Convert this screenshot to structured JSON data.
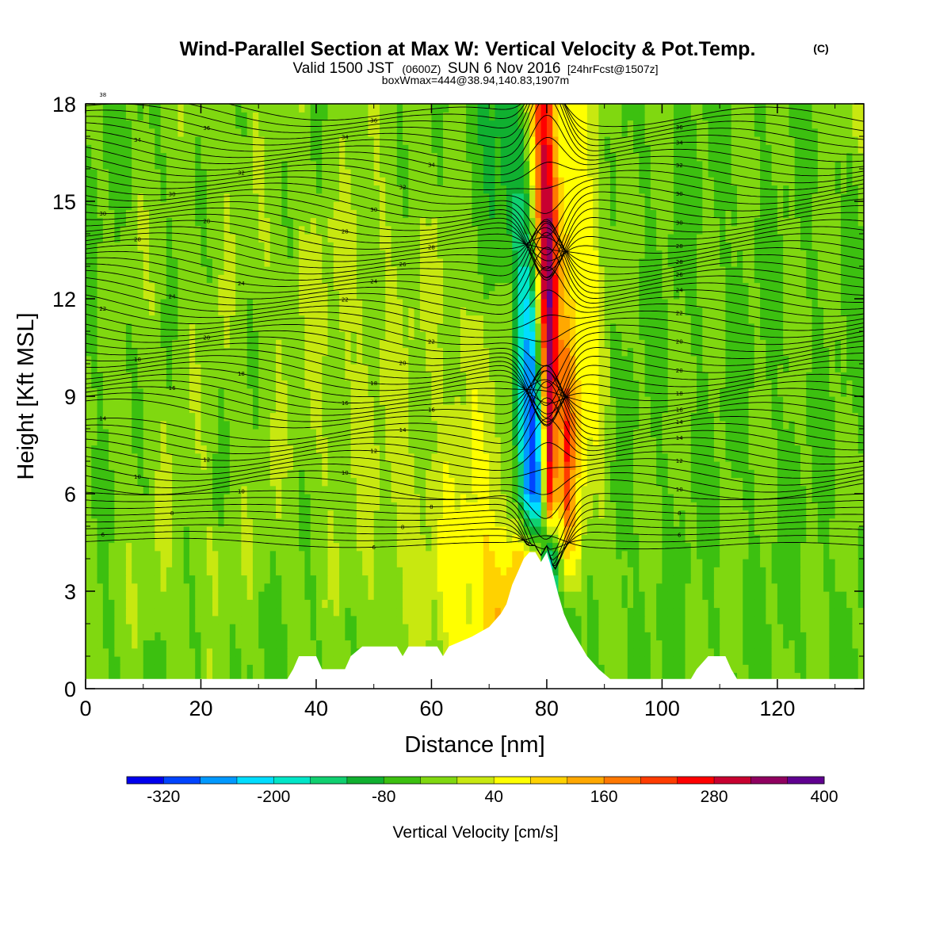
{
  "chart_data": {
    "type": "heatmap",
    "title": "Wind-Parallel Section at Max W: Vertical Velocity & Pot.Temp.",
    "title_mark": "(C)",
    "subtitle_parts": [
      "Valid 1500 JST",
      "(0600Z)",
      "SUN 6 Nov 2016",
      "[24hrFcst@1507z]"
    ],
    "subtitle2": "boxWmax=444@38.94,140.83,1907m",
    "xlabel": "Distance [nm]",
    "ylabel": "Height [Kft MSL]",
    "xlim": [
      0,
      135
    ],
    "ylim": [
      0,
      18
    ],
    "xticks": [
      "0",
      "20",
      "40",
      "60",
      "80",
      "100",
      "120"
    ],
    "yticks": [
      "0",
      "3",
      "6",
      "9",
      "12",
      "15",
      "18"
    ],
    "colorbar": {
      "label": "Vertical Velocity [cm/s]",
      "tick_labels": [
        "-320",
        "-200",
        "-80",
        "40",
        "160",
        "280",
        "400"
      ],
      "colors": [
        "#0000ee",
        "#0044ff",
        "#0099ff",
        "#00ddff",
        "#00e6c8",
        "#10d070",
        "#10b030",
        "#3cc010",
        "#80d810",
        "#c8e810",
        "#ffff00",
        "#ffd200",
        "#ffa800",
        "#ff7800",
        "#ff3c00",
        "#ff0000",
        "#c80030",
        "#900060",
        "#600090"
      ]
    },
    "terrain_kft": [
      [
        0,
        0.3
      ],
      [
        35,
        0.3
      ],
      [
        36,
        0.6
      ],
      [
        37,
        1.0
      ],
      [
        40,
        1.0
      ],
      [
        41,
        0.6
      ],
      [
        45,
        0.6
      ],
      [
        46,
        1.0
      ],
      [
        48,
        1.3
      ],
      [
        54,
        1.3
      ],
      [
        55,
        1.0
      ],
      [
        56,
        1.3
      ],
      [
        61,
        1.3
      ],
      [
        62,
        1.0
      ],
      [
        63,
        1.3
      ],
      [
        67,
        1.6
      ],
      [
        70,
        1.9
      ],
      [
        72,
        2.3
      ],
      [
        73,
        2.6
      ],
      [
        74,
        3.2
      ],
      [
        75,
        3.6
      ],
      [
        76,
        4.0
      ],
      [
        77,
        4.2
      ],
      [
        78,
        4.2
      ],
      [
        79,
        3.9
      ],
      [
        80,
        4.2
      ],
      [
        81,
        3.6
      ],
      [
        82,
        2.9
      ],
      [
        83,
        2.3
      ],
      [
        84,
        1.9
      ],
      [
        85,
        1.6
      ],
      [
        86,
        1.3
      ],
      [
        87,
        1.0
      ],
      [
        89,
        0.6
      ],
      [
        91,
        0.3
      ],
      [
        105,
        0.3
      ],
      [
        106,
        0.6
      ],
      [
        108,
        1.0
      ],
      [
        111,
        1.0
      ],
      [
        112,
        0.6
      ],
      [
        113,
        0.3
      ],
      [
        135,
        0.3
      ]
    ],
    "vertical_velocity_cm_s": {
      "x_nm": [
        0,
        10,
        20,
        30,
        40,
        50,
        60,
        65,
        70,
        73,
        75,
        76,
        77,
        78,
        79,
        80,
        81,
        82,
        83,
        84,
        85,
        86,
        88,
        90,
        92,
        95,
        100,
        110,
        120,
        135
      ],
      "h_kft": [
        0,
        2,
        4,
        6,
        8,
        10,
        12,
        14,
        16,
        18
      ],
      "rows": [
        [
          -60,
          -40,
          -30,
          -40,
          -40,
          -20,
          -20,
          40,
          60,
          90,
          120,
          80,
          40,
          20,
          -80,
          -160,
          -120,
          -80,
          -80,
          -80,
          -60,
          -40,
          -40,
          -40,
          -40,
          -40,
          -40,
          -40,
          -40,
          -40
        ],
        [
          -40,
          -20,
          -20,
          -40,
          -30,
          -20,
          0,
          60,
          100,
          120,
          140,
          120,
          60,
          40,
          -120,
          -220,
          -160,
          -100,
          -80,
          -80,
          -60,
          -40,
          -40,
          -40,
          -40,
          -40,
          -40,
          -40,
          -40,
          -40
        ],
        [
          -20,
          -20,
          0,
          -20,
          -20,
          0,
          20,
          60,
          80,
          90,
          100,
          90,
          60,
          40,
          0,
          -200,
          -160,
          -60,
          60,
          80,
          60,
          20,
          0,
          -20,
          -40,
          -40,
          -40,
          -40,
          -40,
          -40
        ],
        [
          -40,
          -20,
          -20,
          -20,
          -20,
          0,
          20,
          40,
          40,
          20,
          -80,
          -200,
          -280,
          -320,
          -200,
          240,
          280,
          20,
          240,
          200,
          100,
          60,
          20,
          0,
          -40,
          -40,
          -40,
          -40,
          -40,
          -40
        ],
        [
          -40,
          -20,
          -20,
          -20,
          0,
          0,
          0,
          20,
          20,
          0,
          -120,
          -240,
          -320,
          -280,
          -120,
          280,
          320,
          40,
          260,
          220,
          120,
          60,
          40,
          0,
          -40,
          -40,
          -40,
          -40,
          -40,
          -40
        ],
        [
          -40,
          -20,
          -20,
          -20,
          0,
          0,
          0,
          20,
          0,
          -20,
          -140,
          -240,
          -280,
          -200,
          40,
          320,
          340,
          160,
          200,
          160,
          100,
          60,
          40,
          0,
          -40,
          -40,
          -40,
          -40,
          -40,
          -40
        ],
        [
          -40,
          -20,
          -20,
          -20,
          0,
          0,
          0,
          0,
          -20,
          -40,
          -140,
          -200,
          -200,
          -80,
          180,
          380,
          340,
          160,
          120,
          100,
          80,
          60,
          40,
          0,
          -40,
          -40,
          -40,
          -40,
          -40,
          -40
        ],
        [
          -40,
          -20,
          -20,
          -20,
          0,
          0,
          -20,
          -20,
          -40,
          -80,
          -140,
          -160,
          -80,
          40,
          240,
          360,
          300,
          140,
          100,
          80,
          60,
          60,
          40,
          0,
          -40,
          -40,
          -40,
          -40,
          -40,
          -40
        ],
        [
          -40,
          -40,
          -20,
          -20,
          -20,
          -20,
          -20,
          -40,
          -80,
          -100,
          -120,
          -80,
          0,
          120,
          260,
          300,
          200,
          100,
          60,
          60,
          40,
          40,
          40,
          0,
          -40,
          -40,
          -40,
          -40,
          -40,
          -40
        ],
        [
          -40,
          -40,
          -20,
          -20,
          -20,
          -20,
          -20,
          -40,
          -100,
          -100,
          -80,
          -20,
          40,
          160,
          260,
          260,
          140,
          60,
          40,
          40,
          40,
          40,
          20,
          0,
          -40,
          -40,
          -40,
          -40,
          -40,
          0
        ]
      ]
    },
    "theta_contour_labels": [
      "38",
      "36",
      "36",
      "36",
      "34",
      "34",
      "34",
      "34",
      "32",
      "32",
      "32",
      "30",
      "30",
      "30",
      "30",
      "30",
      "28",
      "28",
      "28",
      "28",
      "28",
      "28",
      "26",
      "26",
      "24",
      "24",
      "24",
      "24",
      "22",
      "22",
      "22",
      "22",
      "20",
      "20",
      "20",
      "20",
      "18",
      "18",
      "18",
      "18",
      "16",
      "16",
      "16",
      "16",
      "14",
      "14",
      "14",
      "14",
      "12",
      "12",
      "12",
      "10",
      "10",
      "10",
      "10",
      "8",
      "8",
      "8",
      "8",
      "6",
      "6",
      "6"
    ]
  }
}
